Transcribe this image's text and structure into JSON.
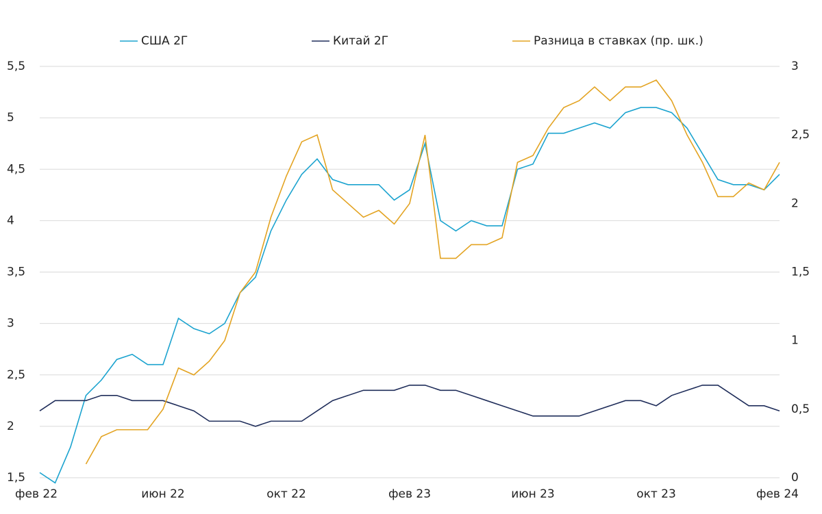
{
  "chart_data": {
    "type": "line",
    "categories": [
      "фев 22",
      null,
      null,
      null,
      null,
      null,
      null,
      null,
      "июн 22",
      null,
      null,
      null,
      null,
      null,
      null,
      null,
      "окт 22",
      null,
      null,
      null,
      null,
      null,
      null,
      null,
      "фев 23",
      null,
      null,
      null,
      null,
      null,
      null,
      null,
      "июн 23",
      null,
      null,
      null,
      null,
      null,
      null,
      null,
      "окт 23",
      null,
      null,
      null,
      null,
      null,
      null,
      null,
      "фев 24"
    ],
    "series": [
      {
        "name": "США 2Г",
        "color": "#1ba3cf",
        "axis": "y",
        "values": [
          1.55,
          1.45,
          1.8,
          2.3,
          2.45,
          2.65,
          2.7,
          2.6,
          2.6,
          3.05,
          2.95,
          2.9,
          3.0,
          3.3,
          3.45,
          3.9,
          4.2,
          4.45,
          4.6,
          4.4,
          4.35,
          4.35,
          4.35,
          4.2,
          4.3,
          4.75,
          4.0,
          3.9,
          4.0,
          3.95,
          3.95,
          4.5,
          4.55,
          4.85,
          4.85,
          4.9,
          4.95,
          4.9,
          5.05,
          5.1,
          5.1,
          5.05,
          4.9,
          4.65,
          4.4,
          4.35,
          4.35,
          4.3,
          4.45
        ]
      },
      {
        "name": "Китай 2Г",
        "color": "#1f2d5a",
        "axis": "y",
        "values": [
          2.15,
          2.25,
          2.25,
          2.25,
          2.3,
          2.3,
          2.25,
          2.25,
          2.25,
          2.2,
          2.15,
          2.05,
          2.05,
          2.05,
          2.0,
          2.05,
          2.05,
          2.05,
          2.15,
          2.25,
          2.3,
          2.35,
          2.35,
          2.35,
          2.4,
          2.4,
          2.35,
          2.35,
          2.3,
          2.25,
          2.2,
          2.15,
          2.1,
          2.1,
          2.1,
          2.1,
          2.15,
          2.2,
          2.25,
          2.25,
          2.2,
          2.3,
          2.35,
          2.4,
          2.4,
          2.3,
          2.2,
          2.2,
          2.15
        ]
      },
      {
        "name": "Разница в ставках (пр. шк.)",
        "color": "#e3a321",
        "axis": "y2",
        "values": [
          null,
          null,
          null,
          0.1,
          0.3,
          0.35,
          0.35,
          0.35,
          0.5,
          0.8,
          0.75,
          0.85,
          1.0,
          1.35,
          1.5,
          1.9,
          2.2,
          2.45,
          2.5,
          2.1,
          2.0,
          1.9,
          1.95,
          1.85,
          2.0,
          2.5,
          1.6,
          1.6,
          1.7,
          1.7,
          1.75,
          2.3,
          2.35,
          2.55,
          2.7,
          2.75,
          2.85,
          2.75,
          2.85,
          2.85,
          2.9,
          2.75,
          2.5,
          2.3,
          2.05,
          2.05,
          2.15,
          2.1,
          2.3
        ]
      }
    ],
    "ylim": [
      1.5,
      5.5
    ],
    "yticks": [
      {
        "value": 1.5,
        "label": "1,5"
      },
      2,
      {
        "value": 2.5,
        "label": "2,5"
      },
      3,
      {
        "value": 3.5,
        "label": "3,5"
      },
      4,
      {
        "value": 4.5,
        "label": "4,5"
      },
      5,
      {
        "value": 5.5,
        "label": "5,5"
      }
    ],
    "y2lim": [
      0,
      3
    ],
    "y2ticks": [
      0,
      {
        "value": 0.5,
        "label": "0,5"
      },
      1,
      {
        "value": 1.5,
        "label": "1,5"
      },
      2,
      {
        "value": 2.5,
        "label": "2,5"
      },
      3
    ],
    "grid": true
  }
}
